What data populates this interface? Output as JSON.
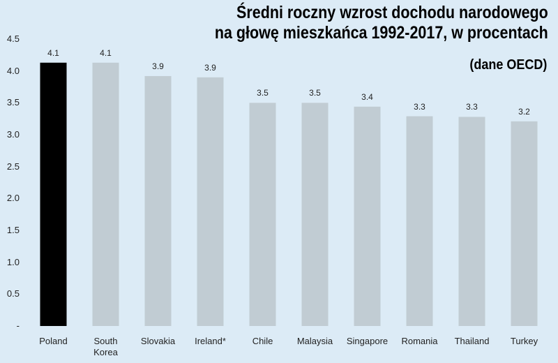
{
  "chart_data": {
    "type": "bar",
    "title": "Średni roczny wzrost dochodu narodowego\nna głowę mieszkańca 1992-2017, w procentach",
    "subtitle": "(dane OECD)",
    "categories": [
      "Poland",
      "South\nKorea",
      "Slovakia",
      "Ireland*",
      "Chile",
      "Malaysia",
      "Singapore",
      "Romania",
      "Thailand",
      "Turkey"
    ],
    "values": [
      4.13,
      4.13,
      3.92,
      3.9,
      3.5,
      3.5,
      3.44,
      3.29,
      3.28,
      3.21
    ],
    "value_labels": [
      "4.1",
      "4.1",
      "3.9",
      "3.9",
      "3.5",
      "3.5",
      "3.4",
      "3.3",
      "3.3",
      "3.2"
    ],
    "colors": [
      "#000000",
      "#c1ccd3",
      "#c1ccd3",
      "#c1ccd3",
      "#c1ccd3",
      "#c1ccd3",
      "#c1ccd3",
      "#c1ccd3",
      "#c1ccd3",
      "#c1ccd3"
    ],
    "ylim": [
      0,
      4.5
    ],
    "yticks": [
      {
        "value": 0,
        "label": "-"
      },
      0.5,
      {
        "value": 1,
        "label": "1.0"
      },
      1.5,
      {
        "value": 2,
        "label": "2.0"
      },
      2.5,
      {
        "value": 3,
        "label": "3.0"
      },
      3.5,
      {
        "value": 4,
        "label": "4.0"
      },
      4.5
    ],
    "grid": false
  }
}
